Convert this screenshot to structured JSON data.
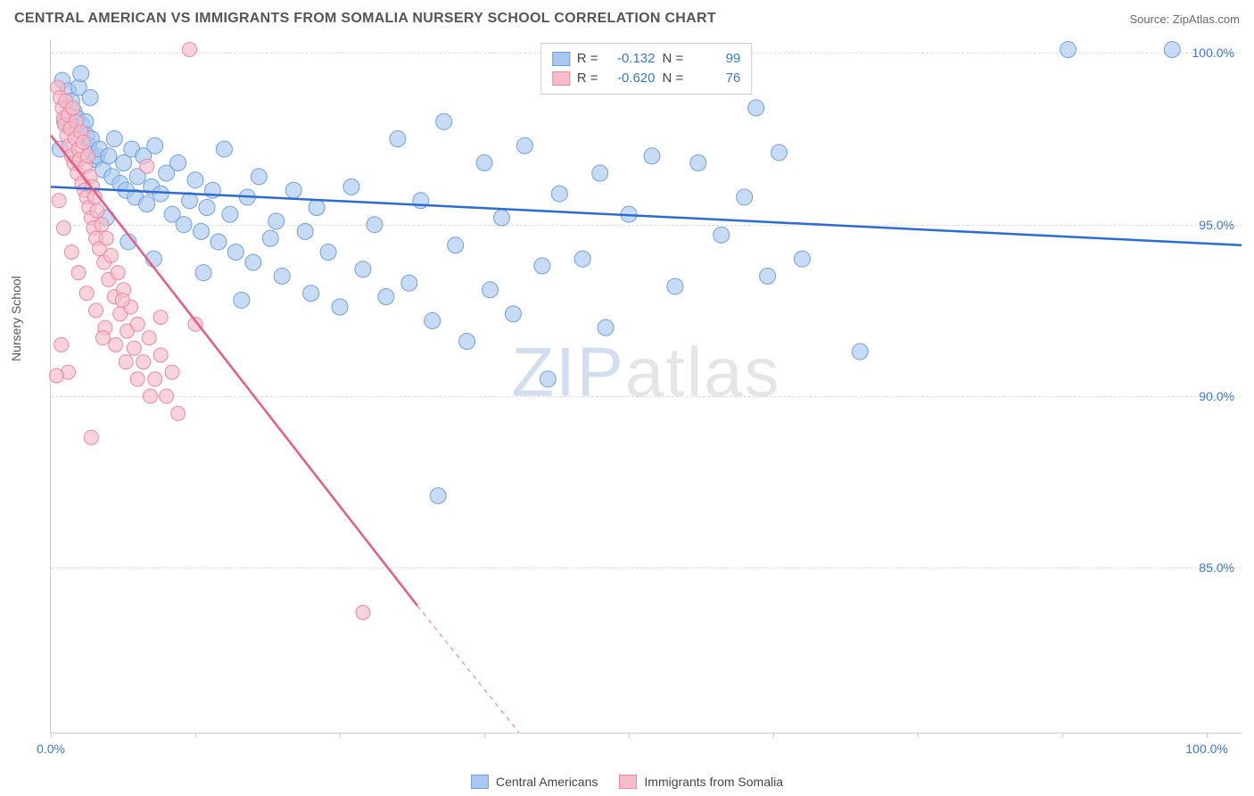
{
  "header": {
    "title": "CENTRAL AMERICAN VS IMMIGRANTS FROM SOMALIA NURSERY SCHOOL CORRELATION CHART",
    "source_prefix": "Source: ",
    "source": "ZipAtlas.com"
  },
  "chart": {
    "type": "scatter",
    "ylabel": "Nursery School",
    "background_color": "#ffffff",
    "grid_color": "#dddddd",
    "axis_color": "#cccccc",
    "tick_label_color": "#3976d6",
    "tick_fontsize": 14,
    "label_fontsize": 14,
    "xlim": [
      0,
      103
    ],
    "ylim": [
      80.2,
      100.4
    ],
    "x_ticks": [
      0,
      12.5,
      25,
      37.5,
      50,
      62.5,
      75,
      87.5,
      100
    ],
    "x_tick_labels": {
      "0": "0.0%",
      "100": "100.0%"
    },
    "y_ticks": [
      85.0,
      90.0,
      95.0,
      100.0
    ],
    "y_tick_labels": {
      "85.0": "85.0%",
      "90.0": "90.0%",
      "95.0": "95.0%",
      "100.0": "100.0%"
    },
    "watermark": {
      "text_bold": "ZIP",
      "text_light": "atlas",
      "fontsize": 78
    },
    "legend_top": {
      "rows": [
        {
          "color_fill": "#a9c8f0",
          "color_border": "#6fa0e0",
          "r_label": "R =",
          "r_value": "-0.132",
          "n_label": "N =",
          "n_value": "99"
        },
        {
          "color_fill": "#f6bcc9",
          "color_border": "#ec88a2",
          "r_label": "R =",
          "r_value": "-0.620",
          "n_label": "N =",
          "n_value": "76"
        }
      ]
    },
    "legend_bottom": {
      "items": [
        {
          "label": "Central Americans",
          "fill": "#a9c8f0",
          "border": "#6fa0e0"
        },
        {
          "label": "Immigrants from Somalia",
          "fill": "#f6bcc9",
          "border": "#ec88a2"
        }
      ]
    },
    "series": [
      {
        "name": "Central Americans",
        "marker_fill": "#a9c8f0",
        "marker_stroke": "#6fa0e0",
        "marker_opacity": 0.65,
        "marker_radius": 9,
        "line_color": "#2a6bd4",
        "line_width": 2.5,
        "trend": {
          "x1": 0,
          "y1": 96.1,
          "x2": 103,
          "y2": 94.4
        },
        "points": [
          [
            1.0,
            99.2
          ],
          [
            1.5,
            98.9
          ],
          [
            1.8,
            98.6
          ],
          [
            2.0,
            98.3
          ],
          [
            2.3,
            98.1
          ],
          [
            2.4,
            99.0
          ],
          [
            2.7,
            97.9
          ],
          [
            3.0,
            98.0
          ],
          [
            3.1,
            97.6
          ],
          [
            3.3,
            97.3
          ],
          [
            3.5,
            97.5
          ],
          [
            3.8,
            96.9
          ],
          [
            4.0,
            97.0
          ],
          [
            4.2,
            97.2
          ],
          [
            4.5,
            96.6
          ],
          [
            5.0,
            97.0
          ],
          [
            5.3,
            96.4
          ],
          [
            5.5,
            97.5
          ],
          [
            6.0,
            96.2
          ],
          [
            6.3,
            96.8
          ],
          [
            6.5,
            96.0
          ],
          [
            7.0,
            97.2
          ],
          [
            7.3,
            95.8
          ],
          [
            7.5,
            96.4
          ],
          [
            8.0,
            97.0
          ],
          [
            8.3,
            95.6
          ],
          [
            8.7,
            96.1
          ],
          [
            9.0,
            97.3
          ],
          [
            9.5,
            95.9
          ],
          [
            10.0,
            96.5
          ],
          [
            10.5,
            95.3
          ],
          [
            11.0,
            96.8
          ],
          [
            11.5,
            95.0
          ],
          [
            12.0,
            95.7
          ],
          [
            12.5,
            96.3
          ],
          [
            13.0,
            94.8
          ],
          [
            13.5,
            95.5
          ],
          [
            14.0,
            96.0
          ],
          [
            14.5,
            94.5
          ],
          [
            15.0,
            97.2
          ],
          [
            15.5,
            95.3
          ],
          [
            16.0,
            94.2
          ],
          [
            17.0,
            95.8
          ],
          [
            17.5,
            93.9
          ],
          [
            18.0,
            96.4
          ],
          [
            19.0,
            94.6
          ],
          [
            19.5,
            95.1
          ],
          [
            20.0,
            93.5
          ],
          [
            21.0,
            96.0
          ],
          [
            22.0,
            94.8
          ],
          [
            22.5,
            93.0
          ],
          [
            23.0,
            95.5
          ],
          [
            24.0,
            94.2
          ],
          [
            25.0,
            92.6
          ],
          [
            26.0,
            96.1
          ],
          [
            27.0,
            93.7
          ],
          [
            28.0,
            95.0
          ],
          [
            29.0,
            92.9
          ],
          [
            30.0,
            97.5
          ],
          [
            31.0,
            93.3
          ],
          [
            32.0,
            95.7
          ],
          [
            33.0,
            92.2
          ],
          [
            34.0,
            98.0
          ],
          [
            35.0,
            94.4
          ],
          [
            36.0,
            91.6
          ],
          [
            37.5,
            96.8
          ],
          [
            38.0,
            93.1
          ],
          [
            39.0,
            95.2
          ],
          [
            40.0,
            92.4
          ],
          [
            41.0,
            97.3
          ],
          [
            42.5,
            93.8
          ],
          [
            43.0,
            90.5
          ],
          [
            44.0,
            95.9
          ],
          [
            46.0,
            94.0
          ],
          [
            47.5,
            96.5
          ],
          [
            48.0,
            92.0
          ],
          [
            50.0,
            95.3
          ],
          [
            52.0,
            97.0
          ],
          [
            54.0,
            93.2
          ],
          [
            56.0,
            96.8
          ],
          [
            58.0,
            94.7
          ],
          [
            60.0,
            95.8
          ],
          [
            61.0,
            98.4
          ],
          [
            62.0,
            93.5
          ],
          [
            63.0,
            97.1
          ],
          [
            65.0,
            94.0
          ],
          [
            70.0,
            91.3
          ],
          [
            88.0,
            100.1
          ],
          [
            97.0,
            100.1
          ],
          [
            33.5,
            87.1
          ],
          [
            4.8,
            95.2
          ],
          [
            6.7,
            94.5
          ],
          [
            8.9,
            94.0
          ],
          [
            13.2,
            93.6
          ],
          [
            16.5,
            92.8
          ],
          [
            2.6,
            99.4
          ],
          [
            3.4,
            98.7
          ],
          [
            1.2,
            98.0
          ],
          [
            0.8,
            97.2
          ]
        ]
      },
      {
        "name": "Immigrants from Somalia",
        "marker_fill": "#f6bcc9",
        "marker_stroke": "#ec88a2",
        "marker_opacity": 0.65,
        "marker_radius": 8,
        "line_color": "#ea5a82",
        "line_width": 2.5,
        "trend": {
          "x1": 0,
          "y1": 97.6,
          "x2": 31.7,
          "y2": 83.9
        },
        "trend_dash_extend": {
          "x1": 31.7,
          "y1": 83.9,
          "x2": 40.5,
          "y2": 80.2
        },
        "points": [
          [
            0.6,
            99.0
          ],
          [
            0.8,
            98.7
          ],
          [
            1.0,
            98.4
          ],
          [
            1.1,
            98.1
          ],
          [
            1.2,
            97.9
          ],
          [
            1.3,
            98.6
          ],
          [
            1.4,
            97.6
          ],
          [
            1.5,
            98.2
          ],
          [
            1.6,
            97.3
          ],
          [
            1.7,
            97.8
          ],
          [
            1.8,
            97.0
          ],
          [
            1.9,
            98.4
          ],
          [
            2.0,
            96.8
          ],
          [
            2.1,
            97.5
          ],
          [
            2.2,
            98.0
          ],
          [
            2.3,
            96.5
          ],
          [
            2.4,
            97.2
          ],
          [
            2.5,
            96.9
          ],
          [
            2.6,
            97.7
          ],
          [
            2.7,
            96.2
          ],
          [
            2.8,
            97.4
          ],
          [
            2.9,
            96.0
          ],
          [
            3.0,
            96.7
          ],
          [
            3.1,
            95.8
          ],
          [
            3.2,
            97.0
          ],
          [
            3.3,
            95.5
          ],
          [
            3.4,
            96.4
          ],
          [
            3.5,
            95.2
          ],
          [
            3.6,
            96.1
          ],
          [
            3.7,
            94.9
          ],
          [
            3.8,
            95.8
          ],
          [
            3.9,
            94.6
          ],
          [
            4.0,
            95.4
          ],
          [
            4.2,
            94.3
          ],
          [
            4.4,
            95.0
          ],
          [
            4.6,
            93.9
          ],
          [
            4.8,
            94.6
          ],
          [
            5.0,
            93.4
          ],
          [
            5.2,
            94.1
          ],
          [
            5.5,
            92.9
          ],
          [
            5.8,
            93.6
          ],
          [
            6.0,
            92.4
          ],
          [
            6.3,
            93.1
          ],
          [
            6.6,
            91.9
          ],
          [
            6.9,
            92.6
          ],
          [
            7.2,
            91.4
          ],
          [
            7.5,
            92.1
          ],
          [
            8.0,
            91.0
          ],
          [
            8.5,
            91.7
          ],
          [
            9.0,
            90.5
          ],
          [
            9.5,
            91.2
          ],
          [
            10.0,
            90.0
          ],
          [
            10.5,
            90.7
          ],
          [
            11.0,
            89.5
          ],
          [
            0.7,
            95.7
          ],
          [
            1.1,
            94.9
          ],
          [
            1.8,
            94.2
          ],
          [
            2.4,
            93.6
          ],
          [
            3.1,
            93.0
          ],
          [
            3.9,
            92.5
          ],
          [
            4.7,
            92.0
          ],
          [
            5.6,
            91.5
          ],
          [
            6.5,
            91.0
          ],
          [
            7.5,
            90.5
          ],
          [
            8.6,
            90.0
          ],
          [
            0.9,
            91.5
          ],
          [
            1.5,
            90.7
          ],
          [
            0.5,
            90.6
          ],
          [
            3.5,
            88.8
          ],
          [
            4.5,
            91.7
          ],
          [
            6.2,
            92.8
          ],
          [
            9.5,
            92.3
          ],
          [
            12.5,
            92.1
          ],
          [
            12.0,
            100.1
          ],
          [
            8.3,
            96.7
          ],
          [
            27.0,
            83.7
          ]
        ]
      }
    ]
  }
}
